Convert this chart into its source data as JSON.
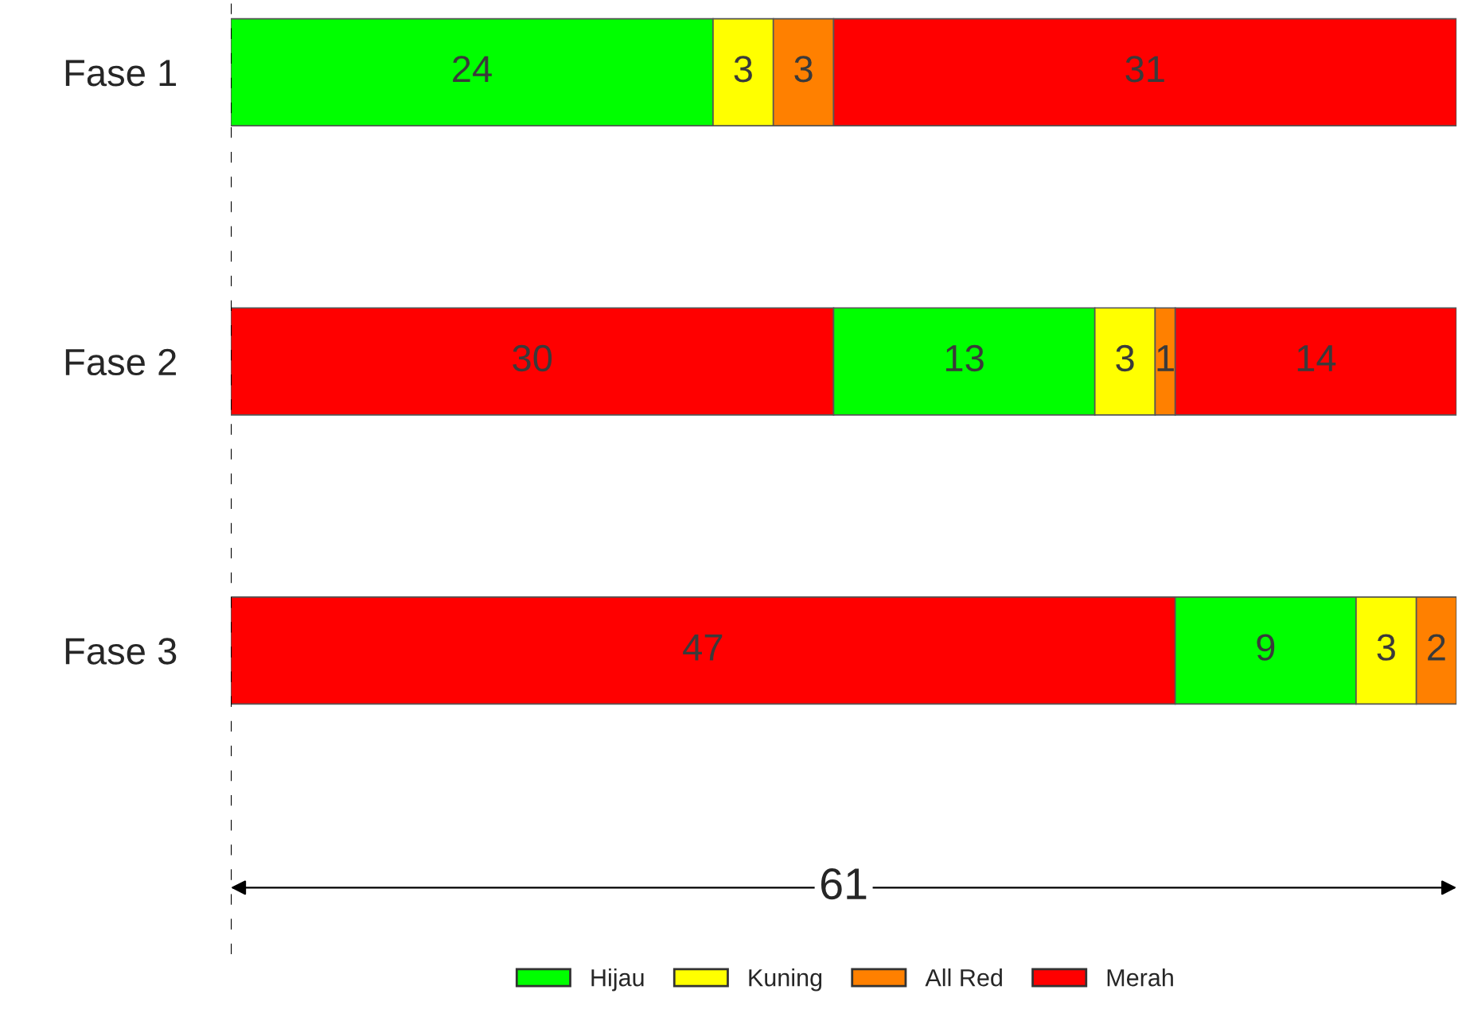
{
  "chart_data": {
    "type": "bar",
    "orientation": "horizontal",
    "stacked": true,
    "categories": [
      "Fase 1",
      "Fase 2",
      "Fase 3"
    ],
    "series": [
      {
        "color": "#ff0000",
        "values": [
          null,
          30,
          47
        ]
      },
      {
        "name": "Hijau",
        "color": "#00ff00",
        "values": [
          24,
          13,
          9
        ]
      },
      {
        "name": "Kuning",
        "color": "#ffff00",
        "values": [
          3,
          3,
          3
        ]
      },
      {
        "name": "All Red",
        "color": "#ff8000",
        "values": [
          3,
          1,
          2
        ]
      },
      {
        "name": "Merah",
        "color": "#ff0000",
        "values": [
          31,
          14,
          null
        ]
      }
    ],
    "xlim": [
      0,
      61
    ],
    "data_labels": true,
    "legend": "bottom",
    "tick_labels": "y",
    "ref_lines": [
      {
        "axis": "x",
        "value": 0,
        "line_style": "dashed",
        "color": "#000000"
      }
    ],
    "annotations": [
      "61"
    ]
  }
}
